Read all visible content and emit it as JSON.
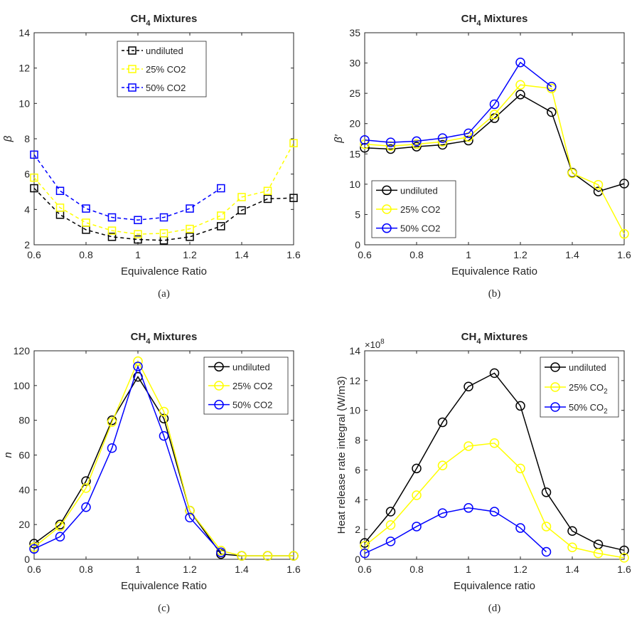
{
  "chart_data": [
    {
      "panel": "a",
      "type": "line",
      "title": "CH",
      "title_sub": "4",
      "title_rest": " Mixtures",
      "xlabel": "Equivalence Ratio",
      "ylabel": "β",
      "caption": "(a)",
      "xlim": [
        0.6,
        1.6
      ],
      "ylim": [
        2,
        14
      ],
      "xticks": [
        0.6,
        0.8,
        1,
        1.2,
        1.4,
        1.6
      ],
      "yticks": [
        2,
        4,
        6,
        8,
        10,
        12,
        14
      ],
      "xtick_labels": [
        "0.6",
        "0.8",
        "1",
        "1.2",
        "1.4",
        "1.6"
      ],
      "ytick_labels": [
        "2",
        "4",
        "6",
        "8",
        "10",
        "12",
        "14"
      ],
      "legend_position": "top-center",
      "marker": "square",
      "line_style": "dashed",
      "series": [
        {
          "name": "undiluted",
          "color": "#000000",
          "x": [
            0.6,
            0.7,
            0.8,
            0.9,
            1.0,
            1.1,
            1.2,
            1.32,
            1.4,
            1.5,
            1.6
          ],
          "y": [
            5.2,
            3.7,
            2.85,
            2.45,
            2.3,
            2.25,
            2.45,
            3.05,
            3.95,
            4.6,
            4.65
          ]
        },
        {
          "name": "25% CO2",
          "color": "#ffff00",
          "x": [
            0.6,
            0.7,
            0.8,
            0.9,
            1.0,
            1.1,
            1.2,
            1.32,
            1.4,
            1.5,
            1.6
          ],
          "y": [
            5.8,
            4.1,
            3.25,
            2.8,
            2.6,
            2.65,
            2.9,
            3.65,
            4.7,
            5.05,
            7.75
          ]
        },
        {
          "name": "50% CO2",
          "color": "#0000ff",
          "x": [
            0.6,
            0.7,
            0.8,
            0.9,
            1.0,
            1.1,
            1.2,
            1.32
          ],
          "y": [
            7.1,
            5.05,
            4.05,
            3.55,
            3.4,
            3.55,
            4.05,
            5.2
          ]
        }
      ]
    },
    {
      "panel": "b",
      "type": "line",
      "title": "CH",
      "title_sub": "4",
      "title_rest": " Mixtures",
      "xlabel": "Equivalence Ratio",
      "ylabel": "β′",
      "caption": "(b)",
      "xlim": [
        0.6,
        1.6
      ],
      "ylim": [
        0,
        35
      ],
      "xticks": [
        0.6,
        0.8,
        1,
        1.2,
        1.4,
        1.6
      ],
      "yticks": [
        0,
        5,
        10,
        15,
        20,
        25,
        30,
        35
      ],
      "xtick_labels": [
        "0.6",
        "0.8",
        "1",
        "1.2",
        "1.4",
        "1.6"
      ],
      "ytick_labels": [
        "0",
        "5",
        "10",
        "15",
        "20",
        "25",
        "30",
        "35"
      ],
      "legend_position": "bottom-left",
      "marker": "circle",
      "line_style": "solid",
      "series": [
        {
          "name": "undiluted",
          "color": "#000000",
          "x": [
            0.6,
            0.7,
            0.8,
            0.9,
            1.0,
            1.1,
            1.2,
            1.32,
            1.4,
            1.5,
            1.6
          ],
          "y": [
            16.0,
            15.8,
            16.2,
            16.5,
            17.2,
            20.9,
            24.8,
            21.9,
            11.9,
            8.8,
            10.1
          ]
        },
        {
          "name": "25% CO2",
          "color": "#ffff00",
          "x": [
            0.6,
            0.7,
            0.8,
            0.9,
            1.0,
            1.1,
            1.2,
            1.32,
            1.4,
            1.5,
            1.6
          ],
          "y": [
            16.6,
            16.3,
            16.6,
            17.0,
            17.8,
            21.5,
            26.4,
            25.8,
            11.8,
            9.9,
            1.8
          ]
        },
        {
          "name": "50% CO2",
          "color": "#0000ff",
          "x": [
            0.6,
            0.7,
            0.8,
            0.9,
            1.0,
            1.1,
            1.2,
            1.32
          ],
          "y": [
            17.3,
            16.9,
            17.1,
            17.6,
            18.4,
            23.2,
            30.1,
            26.1
          ]
        }
      ]
    },
    {
      "panel": "c",
      "type": "line",
      "title": "CH",
      "title_sub": "4",
      "title_rest": " Mixtures",
      "xlabel": "Equivalence Ratio",
      "ylabel": "n",
      "caption": "(c)",
      "xlim": [
        0.6,
        1.6
      ],
      "ylim": [
        0,
        120
      ],
      "xticks": [
        0.6,
        0.8,
        1,
        1.2,
        1.4,
        1.6
      ],
      "yticks": [
        0,
        20,
        40,
        60,
        80,
        100,
        120
      ],
      "xtick_labels": [
        "0.6",
        "0.8",
        "1",
        "1.2",
        "1.4",
        "1.6"
      ],
      "ytick_labels": [
        "0",
        "20",
        "40",
        "60",
        "80",
        "100",
        "120"
      ],
      "legend_position": "top-right",
      "marker": "circle",
      "line_style": "solid",
      "series": [
        {
          "name": "undiluted",
          "color": "#000000",
          "x": [
            0.6,
            0.7,
            0.8,
            0.9,
            1.0,
            1.1,
            1.2,
            1.32,
            1.4,
            1.5,
            1.6
          ],
          "y": [
            9,
            20,
            45,
            80,
            105,
            81,
            28,
            3,
            2,
            2,
            2
          ]
        },
        {
          "name": "25% CO2",
          "color": "#ffff00",
          "x": [
            0.6,
            0.7,
            0.8,
            0.9,
            1.0,
            1.1,
            1.2,
            1.32,
            1.4,
            1.5,
            1.6
          ],
          "y": [
            7,
            19,
            41,
            79,
            114,
            85,
            28,
            5,
            2,
            2,
            2
          ]
        },
        {
          "name": "50% CO2",
          "color": "#0000ff",
          "x": [
            0.6,
            0.7,
            0.8,
            0.9,
            1.0,
            1.1,
            1.2,
            1.32
          ],
          "y": [
            6,
            13,
            30,
            64,
            111,
            71,
            24,
            4
          ]
        }
      ]
    },
    {
      "panel": "d",
      "type": "line",
      "title": "CH",
      "title_sub": "4",
      "title_rest": " Mixtures",
      "xlabel": "Equivalence ratio",
      "ylabel": "Heat release rate integral (W/m3)",
      "caption": "(d)",
      "exponent_label": "×10",
      "exponent_power": "8",
      "xlim": [
        0.6,
        1.6
      ],
      "ylim": [
        0,
        14
      ],
      "xticks": [
        0.6,
        0.8,
        1,
        1.2,
        1.4,
        1.6
      ],
      "yticks": [
        0,
        2,
        4,
        6,
        8,
        10,
        12,
        14
      ],
      "xtick_labels": [
        "0.6",
        "0.8",
        "1",
        "1.2",
        "1.4",
        "1.6"
      ],
      "ytick_labels": [
        "0",
        "2",
        "4",
        "6",
        "8",
        "10",
        "12",
        "14"
      ],
      "legend_position": "top-right",
      "marker": "circle",
      "line_style": "solid",
      "series": [
        {
          "name": "undiluted",
          "legend_main": "undiluted",
          "legend_sub": "",
          "color": "#000000",
          "x": [
            0.6,
            0.7,
            0.8,
            0.9,
            1.0,
            1.1,
            1.2,
            1.3,
            1.4,
            1.5,
            1.6
          ],
          "y": [
            1.1,
            3.2,
            6.1,
            9.2,
            11.6,
            12.5,
            10.3,
            4.5,
            1.9,
            1.0,
            0.6
          ]
        },
        {
          "name": "25% CO2",
          "legend_main": "25% CO",
          "legend_sub": "2",
          "color": "#ffff00",
          "x": [
            0.6,
            0.7,
            0.8,
            0.9,
            1.0,
            1.1,
            1.2,
            1.3,
            1.4,
            1.5,
            1.6
          ],
          "y": [
            0.9,
            2.3,
            4.3,
            6.3,
            7.6,
            7.8,
            6.1,
            2.2,
            0.8,
            0.4,
            0.1
          ]
        },
        {
          "name": "50% CO2",
          "legend_main": "50% CO",
          "legend_sub": "2",
          "color": "#0000ff",
          "x": [
            0.6,
            0.7,
            0.8,
            0.9,
            1.0,
            1.1,
            1.2,
            1.3
          ],
          "y": [
            0.4,
            1.2,
            2.2,
            3.1,
            3.45,
            3.2,
            2.1,
            0.5
          ]
        }
      ]
    }
  ]
}
